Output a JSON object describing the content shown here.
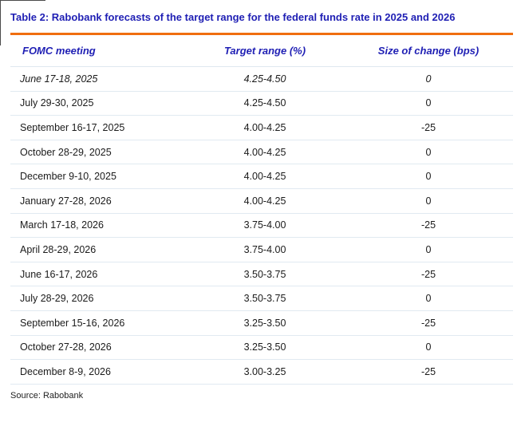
{
  "title": "Table 2: Rabobank forecasts of the target range for the federal funds rate in 2025 and 2026",
  "colors": {
    "title_blue": "#1f1fb4",
    "accent_orange": "#f06e0f",
    "row_divider": "#e1eaf1",
    "body_text": "#1b1b1b"
  },
  "table": {
    "columns": [
      {
        "label": "FOMC meeting",
        "align": "left"
      },
      {
        "label": "Target range (%)",
        "align": "center"
      },
      {
        "label": "Size of change (bps)",
        "align": "center"
      }
    ],
    "rows": [
      {
        "meeting": "June 17-18, 2025",
        "target_range": "4.25-4.50",
        "change_bps": "0",
        "italic": true
      },
      {
        "meeting": "July 29-30, 2025",
        "target_range": "4.25-4.50",
        "change_bps": "0",
        "italic": false
      },
      {
        "meeting": "September 16-17, 2025",
        "target_range": "4.00-4.25",
        "change_bps": "-25",
        "italic": false
      },
      {
        "meeting": "October 28-29, 2025",
        "target_range": "4.00-4.25",
        "change_bps": "0",
        "italic": false
      },
      {
        "meeting": "December 9-10, 2025",
        "target_range": "4.00-4.25",
        "change_bps": "0",
        "italic": false
      },
      {
        "meeting": "January 27-28, 2026",
        "target_range": "4.00-4.25",
        "change_bps": "0",
        "italic": false
      },
      {
        "meeting": "March 17-18, 2026",
        "target_range": "3.75-4.00",
        "change_bps": "-25",
        "italic": false
      },
      {
        "meeting": "April 28-29, 2026",
        "target_range": "3.75-4.00",
        "change_bps": "0",
        "italic": false
      },
      {
        "meeting": "June 16-17, 2026",
        "target_range": "3.50-3.75",
        "change_bps": "-25",
        "italic": false
      },
      {
        "meeting": "July 28-29, 2026",
        "target_range": "3.50-3.75",
        "change_bps": "0",
        "italic": false
      },
      {
        "meeting": "September 15-16, 2026",
        "target_range": "3.25-3.50",
        "change_bps": "-25",
        "italic": false
      },
      {
        "meeting": "October 27-28, 2026",
        "target_range": "3.25-3.50",
        "change_bps": "0",
        "italic": false
      },
      {
        "meeting": "December 8-9, 2026",
        "target_range": "3.00-3.25",
        "change_bps": "-25",
        "italic": false
      }
    ]
  },
  "source": "Source: Rabobank"
}
